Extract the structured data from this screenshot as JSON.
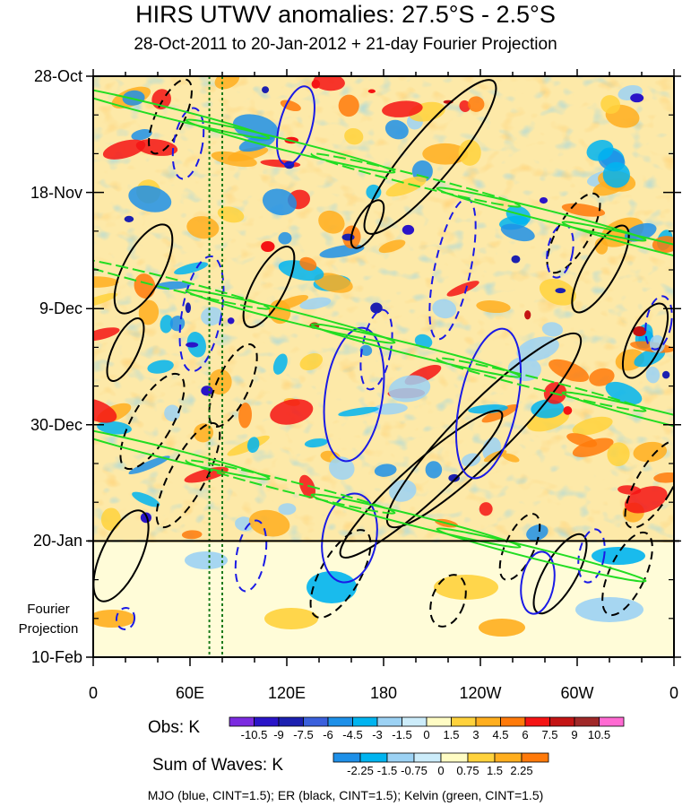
{
  "chart_data": {
    "type": "heatmap",
    "title": "HIRS UTWV anomalies: 27.5°S - 2.5°S",
    "subtitle": "28-Oct-2011 to 20-Jan-2012 + 21-day Fourier Projection",
    "x_ticks": [
      "0",
      "60E",
      "120E",
      "180",
      "120W",
      "60W",
      "0"
    ],
    "x_tick_lon": [
      0,
      60,
      120,
      180,
      240,
      300,
      360
    ],
    "y_ticks": [
      "28-Oct",
      "18-Nov",
      "9-Dec",
      "30-Dec",
      "20-Jan",
      "10-Feb"
    ],
    "y_tick_day": [
      0,
      21,
      42,
      63,
      84,
      105
    ],
    "projection_label": [
      "Fourier",
      "Projection"
    ],
    "projection_start_day": 84,
    "obs_colorbar": {
      "label": "Obs: K",
      "levels": [
        "-10.5",
        "-9",
        "-7.5",
        "-6",
        "-4.5",
        "-3",
        "-1.5",
        "0",
        "1.5",
        "3",
        "4.5",
        "6",
        "7.5",
        "9",
        "10.5"
      ],
      "colors": [
        "#7b2be0",
        "#2a14c8",
        "#1c20b0",
        "#3a60dc",
        "#1e90e8",
        "#00b4f0",
        "#9cd2f4",
        "#ccecfa",
        "#fffcc4",
        "#ffd23c",
        "#ffae1e",
        "#ff7a0a",
        "#f51414",
        "#c41414",
        "#a02828",
        "#ff6ad2"
      ]
    },
    "waves_colorbar": {
      "label": "Sum of Waves: K",
      "levels": [
        "-2.25",
        "-1.5",
        "-0.75",
        "0",
        "0.75",
        "1.5",
        "2.25"
      ],
      "colors": [
        "#1e90e8",
        "#00b4f0",
        "#9cd2f4",
        "#ccecfa",
        "#fffcc4",
        "#ffd23c",
        "#ffae1e",
        "#ff7a0a"
      ]
    },
    "contours": [
      {
        "name": "MJO",
        "color": "#1a1ae6",
        "cint": 1.5
      },
      {
        "name": "ER",
        "color": "#000000",
        "cint": 1.5
      },
      {
        "name": "Kelvin",
        "color": "#22dd22",
        "cint": 1.5
      }
    ],
    "marker_lines_lon": [
      72,
      80
    ],
    "footer": "MJO (blue, CINT=1.5); ER (black, CINT=1.5); Kelvin (green, CINT=1.5)"
  }
}
